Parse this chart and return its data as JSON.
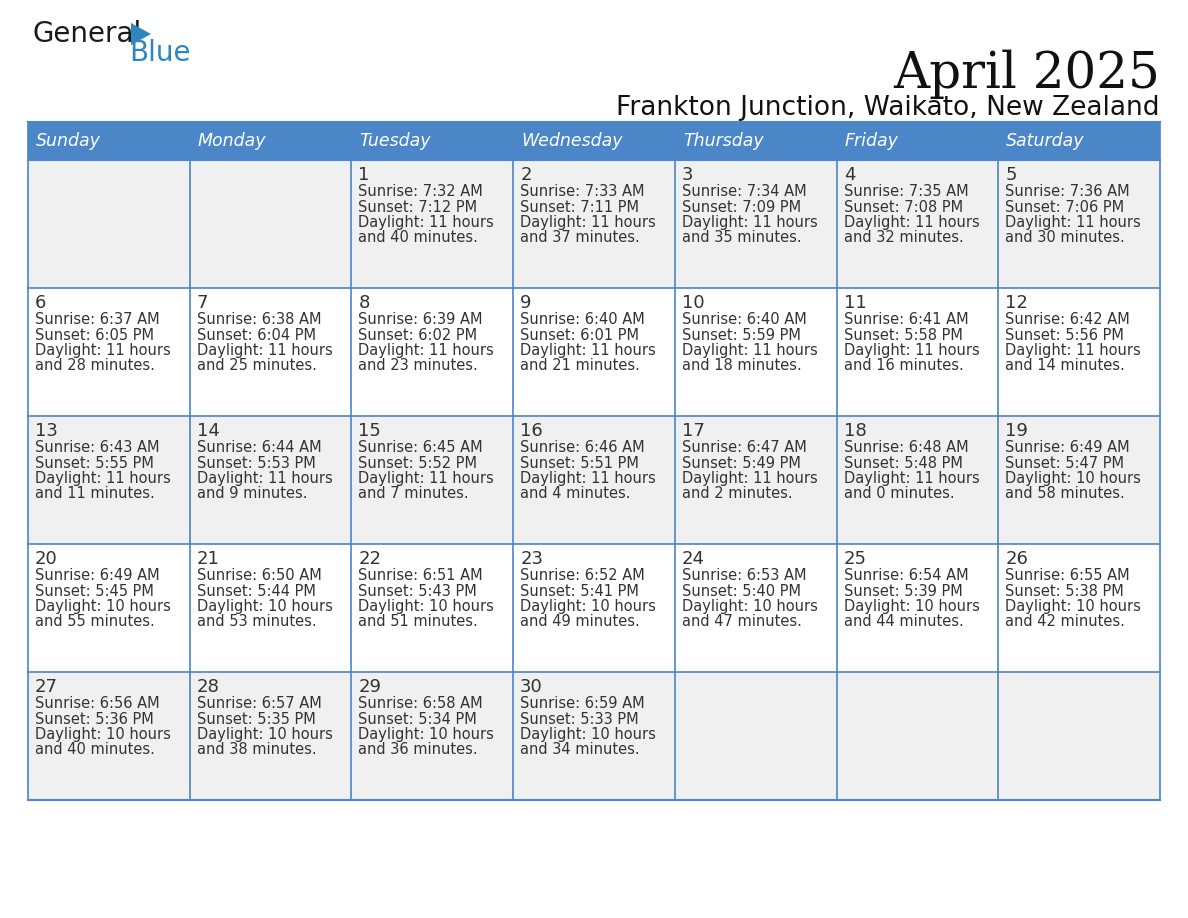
{
  "title": "April 2025",
  "subtitle": "Frankton Junction, Waikato, New Zealand",
  "days_of_week": [
    "Sunday",
    "Monday",
    "Tuesday",
    "Wednesday",
    "Thursday",
    "Friday",
    "Saturday"
  ],
  "header_bg": "#4A86C8",
  "header_text": "#FFFFFF",
  "row_bg_odd": "#F0F0F0",
  "row_bg_even": "#FFFFFF",
  "cell_text_color": "#333333",
  "day_number_color": "#333333",
  "border_color": "#4A86C8",
  "logo_general_color": "#1a1a1a",
  "logo_blue_color": "#2E86C1",
  "logo_triangle_color": "#2E86C1",
  "calendar_data": [
    [
      null,
      null,
      {
        "day": "1",
        "sunrise": "7:32 AM",
        "sunset": "7:12 PM",
        "daylight": "11 hours",
        "daylight2": "and 40 minutes."
      },
      {
        "day": "2",
        "sunrise": "7:33 AM",
        "sunset": "7:11 PM",
        "daylight": "11 hours",
        "daylight2": "and 37 minutes."
      },
      {
        "day": "3",
        "sunrise": "7:34 AM",
        "sunset": "7:09 PM",
        "daylight": "11 hours",
        "daylight2": "and 35 minutes."
      },
      {
        "day": "4",
        "sunrise": "7:35 AM",
        "sunset": "7:08 PM",
        "daylight": "11 hours",
        "daylight2": "and 32 minutes."
      },
      {
        "day": "5",
        "sunrise": "7:36 AM",
        "sunset": "7:06 PM",
        "daylight": "11 hours",
        "daylight2": "and 30 minutes."
      }
    ],
    [
      {
        "day": "6",
        "sunrise": "6:37 AM",
        "sunset": "6:05 PM",
        "daylight": "11 hours",
        "daylight2": "and 28 minutes."
      },
      {
        "day": "7",
        "sunrise": "6:38 AM",
        "sunset": "6:04 PM",
        "daylight": "11 hours",
        "daylight2": "and 25 minutes."
      },
      {
        "day": "8",
        "sunrise": "6:39 AM",
        "sunset": "6:02 PM",
        "daylight": "11 hours",
        "daylight2": "and 23 minutes."
      },
      {
        "day": "9",
        "sunrise": "6:40 AM",
        "sunset": "6:01 PM",
        "daylight": "11 hours",
        "daylight2": "and 21 minutes."
      },
      {
        "day": "10",
        "sunrise": "6:40 AM",
        "sunset": "5:59 PM",
        "daylight": "11 hours",
        "daylight2": "and 18 minutes."
      },
      {
        "day": "11",
        "sunrise": "6:41 AM",
        "sunset": "5:58 PM",
        "daylight": "11 hours",
        "daylight2": "and 16 minutes."
      },
      {
        "day": "12",
        "sunrise": "6:42 AM",
        "sunset": "5:56 PM",
        "daylight": "11 hours",
        "daylight2": "and 14 minutes."
      }
    ],
    [
      {
        "day": "13",
        "sunrise": "6:43 AM",
        "sunset": "5:55 PM",
        "daylight": "11 hours",
        "daylight2": "and 11 minutes."
      },
      {
        "day": "14",
        "sunrise": "6:44 AM",
        "sunset": "5:53 PM",
        "daylight": "11 hours",
        "daylight2": "and 9 minutes."
      },
      {
        "day": "15",
        "sunrise": "6:45 AM",
        "sunset": "5:52 PM",
        "daylight": "11 hours",
        "daylight2": "and 7 minutes."
      },
      {
        "day": "16",
        "sunrise": "6:46 AM",
        "sunset": "5:51 PM",
        "daylight": "11 hours",
        "daylight2": "and 4 minutes."
      },
      {
        "day": "17",
        "sunrise": "6:47 AM",
        "sunset": "5:49 PM",
        "daylight": "11 hours",
        "daylight2": "and 2 minutes."
      },
      {
        "day": "18",
        "sunrise": "6:48 AM",
        "sunset": "5:48 PM",
        "daylight": "11 hours",
        "daylight2": "and 0 minutes."
      },
      {
        "day": "19",
        "sunrise": "6:49 AM",
        "sunset": "5:47 PM",
        "daylight": "10 hours",
        "daylight2": "and 58 minutes."
      }
    ],
    [
      {
        "day": "20",
        "sunrise": "6:49 AM",
        "sunset": "5:45 PM",
        "daylight": "10 hours",
        "daylight2": "and 55 minutes."
      },
      {
        "day": "21",
        "sunrise": "6:50 AM",
        "sunset": "5:44 PM",
        "daylight": "10 hours",
        "daylight2": "and 53 minutes."
      },
      {
        "day": "22",
        "sunrise": "6:51 AM",
        "sunset": "5:43 PM",
        "daylight": "10 hours",
        "daylight2": "and 51 minutes."
      },
      {
        "day": "23",
        "sunrise": "6:52 AM",
        "sunset": "5:41 PM",
        "daylight": "10 hours",
        "daylight2": "and 49 minutes."
      },
      {
        "day": "24",
        "sunrise": "6:53 AM",
        "sunset": "5:40 PM",
        "daylight": "10 hours",
        "daylight2": "and 47 minutes."
      },
      {
        "day": "25",
        "sunrise": "6:54 AM",
        "sunset": "5:39 PM",
        "daylight": "10 hours",
        "daylight2": "and 44 minutes."
      },
      {
        "day": "26",
        "sunrise": "6:55 AM",
        "sunset": "5:38 PM",
        "daylight": "10 hours",
        "daylight2": "and 42 minutes."
      }
    ],
    [
      {
        "day": "27",
        "sunrise": "6:56 AM",
        "sunset": "5:36 PM",
        "daylight": "10 hours",
        "daylight2": "and 40 minutes."
      },
      {
        "day": "28",
        "sunrise": "6:57 AM",
        "sunset": "5:35 PM",
        "daylight": "10 hours",
        "daylight2": "and 38 minutes."
      },
      {
        "day": "29",
        "sunrise": "6:58 AM",
        "sunset": "5:34 PM",
        "daylight": "10 hours",
        "daylight2": "and 36 minutes."
      },
      {
        "day": "30",
        "sunrise": "6:59 AM",
        "sunset": "5:33 PM",
        "daylight": "10 hours",
        "daylight2": "and 34 minutes."
      },
      null,
      null,
      null
    ]
  ]
}
